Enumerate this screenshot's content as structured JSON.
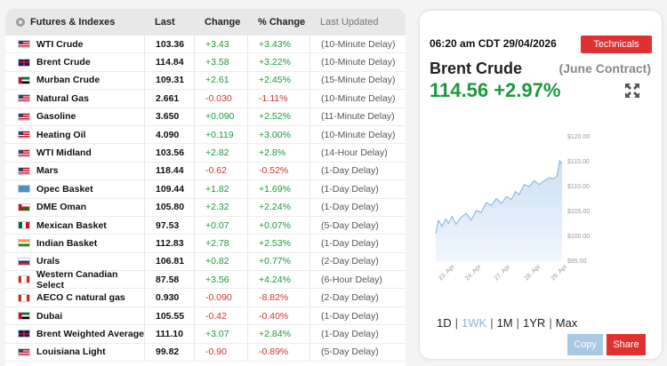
{
  "table": {
    "headers": {
      "name": "Futures & Indexes",
      "last": "Last",
      "change": "Change",
      "pct_change": "% Change",
      "updated": "Last Updated"
    },
    "rows": [
      {
        "name": "WTI Crude",
        "flag": "us",
        "last": "103.36",
        "change": "+3.43",
        "pct": "+3.43%",
        "updated": "(10-Minute Delay)",
        "dir": "pos"
      },
      {
        "name": "Brent Crude",
        "flag": "gb",
        "last": "114.84",
        "change": "+3.58",
        "pct": "+3.22%",
        "updated": "(10-Minute Delay)",
        "dir": "pos"
      },
      {
        "name": "Murban Crude",
        "flag": "ae",
        "last": "109.31",
        "change": "+2.61",
        "pct": "+2.45%",
        "updated": "(15-Minute Delay)",
        "dir": "pos"
      },
      {
        "name": "Natural Gas",
        "flag": "us",
        "last": "2.661",
        "change": "-0.030",
        "pct": "-1.11%",
        "updated": "(10-Minute Delay)",
        "dir": "neg"
      },
      {
        "name": "Gasoline",
        "flag": "us",
        "last": "3.650",
        "change": "+0.090",
        "pct": "+2.52%",
        "updated": "(11-Minute Delay)",
        "dir": "pos"
      },
      {
        "name": "Heating Oil",
        "flag": "us",
        "last": "4.090",
        "change": "+0.119",
        "pct": "+3.00%",
        "updated": "(10-Minute Delay)",
        "dir": "pos"
      },
      {
        "name": "WTI Midland",
        "flag": "us",
        "last": "103.56",
        "change": "+2.82",
        "pct": "+2.8%",
        "updated": "(14-Hour Delay)",
        "dir": "pos"
      },
      {
        "name": "Mars",
        "flag": "us",
        "last": "118.44",
        "change": "-0.62",
        "pct": "-0.52%",
        "updated": "(1-Day Delay)",
        "dir": "neg"
      },
      {
        "name": "Opec Basket",
        "flag": "opec",
        "last": "109.44",
        "change": "+1.82",
        "pct": "+1.69%",
        "updated": "(1-Day Delay)",
        "dir": "pos"
      },
      {
        "name": "DME Oman",
        "flag": "om",
        "last": "105.80",
        "change": "+2.32",
        "pct": "+2.24%",
        "updated": "(1-Day Delay)",
        "dir": "pos"
      },
      {
        "name": "Mexican Basket",
        "flag": "mx",
        "last": "97.53",
        "change": "+0.07",
        "pct": "+0.07%",
        "updated": "(5-Day Delay)",
        "dir": "pos"
      },
      {
        "name": "Indian Basket",
        "flag": "in",
        "last": "112.83",
        "change": "+2.78",
        "pct": "+2.53%",
        "updated": "(1-Day Delay)",
        "dir": "pos"
      },
      {
        "name": "Urals",
        "flag": "ru",
        "last": "106.81",
        "change": "+0.82",
        "pct": "+0.77%",
        "updated": "(2-Day Delay)",
        "dir": "pos"
      },
      {
        "name": "Western Canadian Select",
        "flag": "ca",
        "last": "87.58",
        "change": "+3.56",
        "pct": "+4.24%",
        "updated": "(6-Hour Delay)",
        "dir": "pos"
      },
      {
        "name": "AECO C natural gas",
        "flag": "ca",
        "last": "0.930",
        "change": "-0.090",
        "pct": "-8.82%",
        "updated": "(2-Day Delay)",
        "dir": "neg"
      },
      {
        "name": "Dubai",
        "flag": "ae",
        "last": "105.55",
        "change": "-0.42",
        "pct": "-0.40%",
        "updated": "(1-Day Delay)",
        "dir": "neg"
      },
      {
        "name": "Brent Weighted Average",
        "flag": "gb",
        "last": "111.10",
        "change": "+3.07",
        "pct": "+2.84%",
        "updated": "(1-Day Delay)",
        "dir": "pos"
      },
      {
        "name": "Louisiana Light",
        "flag": "us",
        "last": "99.82",
        "change": "-0.90",
        "pct": "-0.89%",
        "updated": "(5-Day Delay)",
        "dir": "neg"
      }
    ]
  },
  "panel": {
    "timestamp": "06:20 am CDT 29/04/2026",
    "technicals_label": "Technicals",
    "commodity": "Brent Crude",
    "contract": "(June Contract)",
    "price": "114.56 +2.97%",
    "ranges": [
      "1D",
      "1WK",
      "1M",
      "1YR",
      "Max"
    ],
    "active_range": "1WK",
    "copy_label": "Copy",
    "share_label": "Share",
    "expand_icon": "expand-arrows-icon"
  },
  "colors": {
    "positive": "#1a9a3a",
    "negative": "#d62f2f",
    "accent_red": "#e03030",
    "chart_line": "#7fb1e0",
    "chart_fill": "#c9def3"
  },
  "chart_data": {
    "type": "area",
    "title": "",
    "xlabel": "",
    "ylabel": "",
    "ylim": [
      95,
      120
    ],
    "yticks": [
      "$95.00",
      "$100.00",
      "$105.00",
      "$110.00",
      "$115.00",
      "$120.00"
    ],
    "xticks": [
      "23. Apr",
      "24. Apr",
      "27. Apr",
      "28. Apr",
      "29. Apr"
    ],
    "x": [
      0,
      0.02,
      0.05,
      0.08,
      0.1,
      0.13,
      0.16,
      0.2,
      0.24,
      0.28,
      0.32,
      0.36,
      0.4,
      0.44,
      0.48,
      0.52,
      0.56,
      0.6,
      0.63,
      0.66,
      0.7,
      0.74,
      0.78,
      0.82,
      0.86,
      0.9,
      0.93,
      0.96,
      0.98,
      1.0
    ],
    "values": [
      100.5,
      103.2,
      102.0,
      103.5,
      102.6,
      104.0,
      102.4,
      103.8,
      104.6,
      103.2,
      105.2,
      104.8,
      106.8,
      106.2,
      107.6,
      106.6,
      108.0,
      107.4,
      109.0,
      108.4,
      110.4,
      110.0,
      111.2,
      110.4,
      111.2,
      111.8,
      111.6,
      112.0,
      115.2,
      114.6
    ]
  }
}
